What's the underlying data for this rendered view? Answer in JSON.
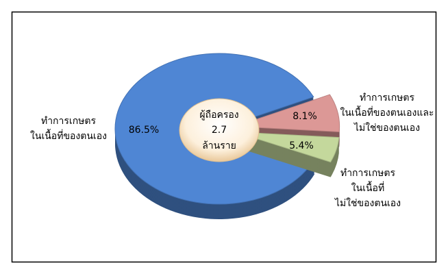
{
  "chart_data": {
    "type": "pie",
    "categories": [
      "ทำการเกษตร\nในเนื้อที่ของตนเอง",
      "ทำการเกษตร\nในเนื้อที่ของตนเองและ\nไม่ใช่ของตนเอง",
      "ทำการเกษตร\nในเนื้อที่\nไม่ใช่ของตนเอง"
    ],
    "values": [
      86.5,
      8.1,
      5.4
    ],
    "value_labels": [
      "86.5%",
      "8.1%",
      "5.4%"
    ],
    "colors": [
      "#4f86d4",
      "#dc9896",
      "#c4d89c"
    ],
    "center_label": {
      "title": "ผู้ถือครอง",
      "value": 2.7,
      "unit": "ล้านราย"
    }
  }
}
